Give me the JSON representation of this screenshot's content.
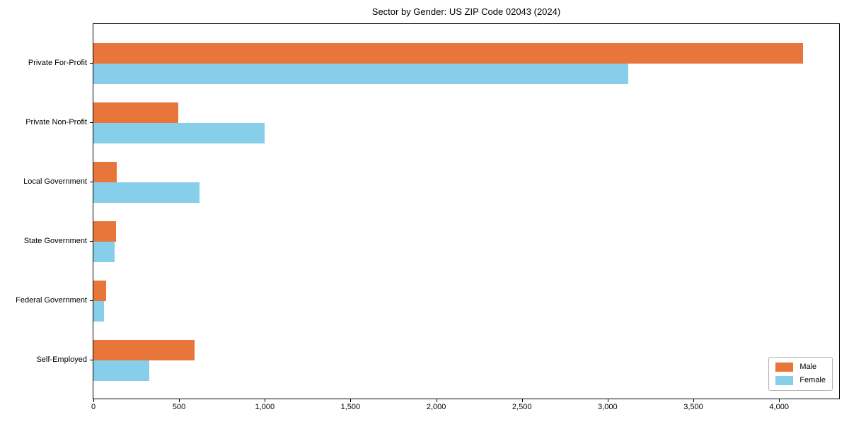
{
  "figure": {
    "background": "#ffffff",
    "text_color": "#000000",
    "axis_color": "#000000"
  },
  "chart_data": {
    "type": "bar",
    "orientation": "horizontal",
    "title": "Sector by Gender: US ZIP Code 02043 (2024)",
    "categories": [
      "Private For-Profit",
      "Private Non-Profit",
      "Local Government",
      "State Government",
      "Federal Government",
      "Self-Employed"
    ],
    "series": [
      {
        "name": "Male",
        "color": "#e8763b",
        "values": [
          4140,
          495,
          135,
          130,
          75,
          590
        ]
      },
      {
        "name": "Female",
        "color": "#87ceeb",
        "values": [
          3120,
          1000,
          620,
          125,
          60,
          325
        ]
      }
    ],
    "xlabel": "",
    "ylabel": "",
    "xlim": [
      0,
      4350
    ],
    "x_ticks": [
      0,
      500,
      1000,
      1500,
      2000,
      2500,
      3000,
      3500,
      4000
    ],
    "x_tick_labels": [
      "0",
      "500",
      "1,000",
      "1,500",
      "2,000",
      "2,500",
      "3,000",
      "3,500",
      "4,000"
    ],
    "grid": false,
    "legend": {
      "position": "lower right",
      "entries": [
        "Male",
        "Female"
      ]
    }
  }
}
